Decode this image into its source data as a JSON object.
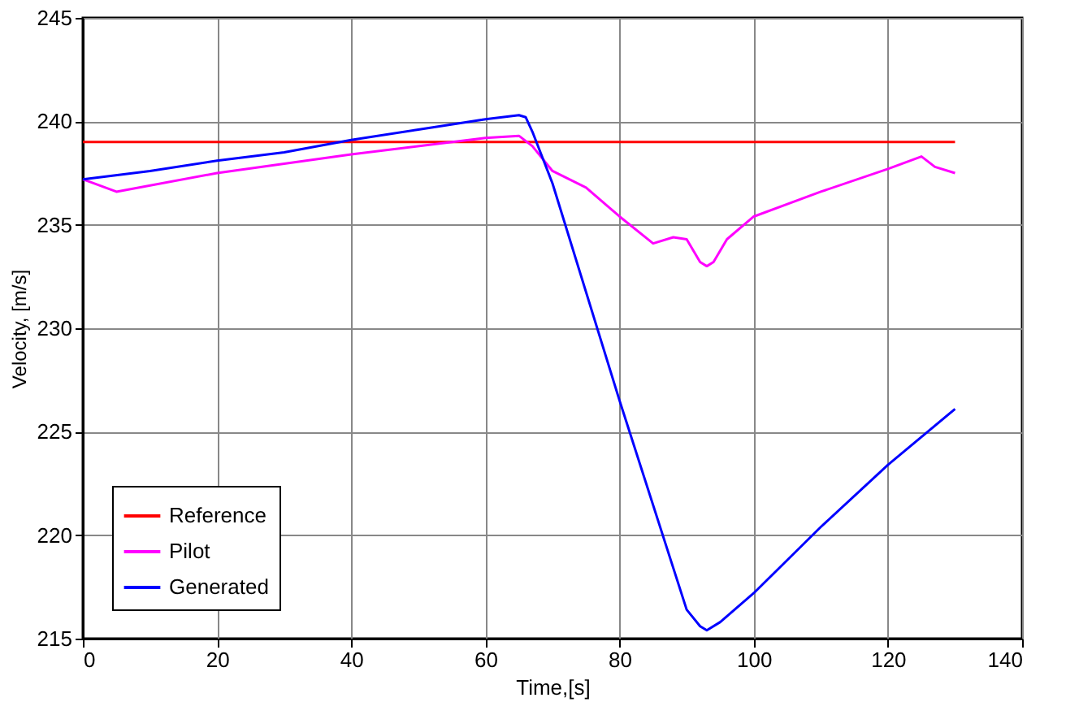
{
  "chart_data": {
    "type": "line",
    "xlabel": "Time,[s]",
    "ylabel": "Velocity, [m/s]",
    "xlim": [
      0,
      140
    ],
    "ylim": [
      215,
      245
    ],
    "xticks": [
      0,
      20,
      40,
      60,
      80,
      100,
      120,
      140
    ],
    "yticks": [
      215,
      220,
      225,
      230,
      235,
      240,
      245
    ],
    "grid": true,
    "legend": "bottom left",
    "line_style": "solid",
    "marker": "none",
    "series": [
      {
        "name": "Reference",
        "color": "#ff0000",
        "x": [
          0,
          130
        ],
        "values": [
          239,
          239
        ]
      },
      {
        "name": "Pilot",
        "color": "#ff00ff",
        "x": [
          0,
          5,
          20,
          40,
          60,
          65,
          67,
          70,
          75,
          80,
          85,
          88,
          90,
          92,
          93,
          94,
          96,
          100,
          110,
          120,
          125,
          127,
          130
        ],
        "values": [
          237.2,
          236.6,
          237.5,
          238.4,
          239.2,
          239.3,
          238.8,
          237.6,
          236.8,
          235.4,
          234.1,
          234.4,
          234.3,
          233.2,
          233.0,
          233.2,
          234.3,
          235.4,
          236.6,
          237.7,
          238.3,
          237.8,
          237.5
        ]
      },
      {
        "name": "Generated",
        "color": "#0000ff",
        "x": [
          0,
          10,
          20,
          30,
          40,
          50,
          60,
          65,
          66,
          67,
          70,
          80,
          90,
          92,
          93,
          95,
          100,
          110,
          120,
          130
        ],
        "values": [
          237.2,
          237.6,
          238.1,
          238.5,
          239.1,
          239.6,
          240.1,
          240.3,
          240.2,
          239.5,
          237.0,
          226.5,
          216.4,
          215.6,
          215.4,
          215.8,
          217.2,
          220.4,
          223.4,
          226.1
        ]
      }
    ]
  }
}
